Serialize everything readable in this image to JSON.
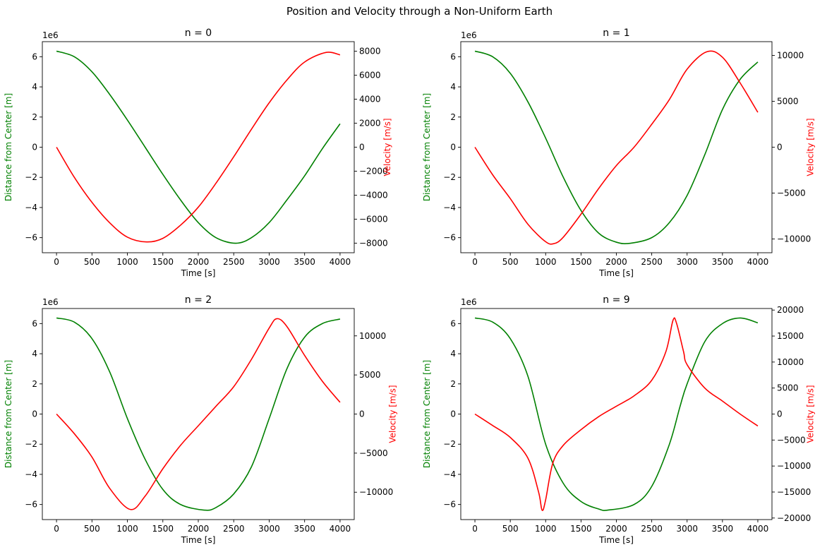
{
  "figure": {
    "suptitle": "Position and Velocity through a Non-Uniform Earth"
  },
  "colors": {
    "distance": "#008000",
    "velocity": "#ff0000",
    "axis": "#000000",
    "background": "#ffffff"
  },
  "chart_data": [
    {
      "type": "line",
      "title": "n = 0",
      "xlabel": "Time [s]",
      "ylabel_left": "Distance from Center [m]",
      "ylabel_right": "Velocity [m/s]",
      "left_offset_label": "1e6",
      "xlim": [
        -200,
        4200
      ],
      "xticks": [
        0,
        500,
        1000,
        1500,
        2000,
        2500,
        3000,
        3500,
        4000
      ],
      "ylim_left": [
        -7.0,
        7.0
      ],
      "yticks_left": [
        -6,
        -4,
        -2,
        0,
        2,
        4,
        6
      ],
      "ylim_right": [
        -8800,
        8800
      ],
      "yticks_right": [
        -8000,
        -6000,
        -4000,
        -2000,
        0,
        2000,
        4000,
        6000,
        8000
      ],
      "grid": false,
      "series": [
        {
          "name": "Distance from Center",
          "axis": "left",
          "x": [
            0,
            250,
            500,
            750,
            1000,
            1250,
            1500,
            1750,
            2000,
            2250,
            2530,
            2750,
            3000,
            3250,
            3500,
            3750,
            4000
          ],
          "y": [
            6.37,
            6.0,
            5.0,
            3.5,
            1.8,
            0.0,
            -1.8,
            -3.5,
            -5.0,
            -6.0,
            -6.37,
            -6.0,
            -5.0,
            -3.5,
            -1.9,
            -0.1,
            1.55
          ]
        },
        {
          "name": "Velocity",
          "axis": "right",
          "x": [
            0,
            250,
            500,
            750,
            1000,
            1270,
            1500,
            1750,
            2000,
            2250,
            2500,
            2750,
            3000,
            3250,
            3500,
            3800,
            4000
          ],
          "y": [
            0,
            -2500,
            -4600,
            -6300,
            -7500,
            -7900,
            -7600,
            -6500,
            -5000,
            -3000,
            -800,
            1500,
            3700,
            5600,
            7100,
            7900,
            7700
          ]
        }
      ]
    },
    {
      "type": "line",
      "title": "n = 1",
      "xlabel": "Time [s]",
      "ylabel_left": "Distance from Center [m]",
      "ylabel_right": "Velocity [m/s]",
      "left_offset_label": "1e6",
      "xlim": [
        -200,
        4200
      ],
      "xticks": [
        0,
        500,
        1000,
        1500,
        2000,
        2500,
        3000,
        3500,
        4000
      ],
      "ylim_left": [
        -7.0,
        7.0
      ],
      "yticks_left": [
        -6,
        -4,
        -2,
        0,
        2,
        4,
        6
      ],
      "ylim_right": [
        -11500,
        11500
      ],
      "yticks_right": [
        -10000,
        -5000,
        0,
        5000,
        10000
      ],
      "grid": false,
      "series": [
        {
          "name": "Distance from Center",
          "axis": "left",
          "x": [
            0,
            250,
            500,
            750,
            1000,
            1250,
            1500,
            1750,
            2000,
            2200,
            2500,
            2750,
            3000,
            3250,
            3500,
            3750,
            4000
          ],
          "y": [
            6.37,
            6.0,
            4.9,
            3.0,
            0.6,
            -2.0,
            -4.2,
            -5.7,
            -6.3,
            -6.37,
            -6.0,
            -5.0,
            -3.2,
            -0.5,
            2.5,
            4.5,
            5.65
          ]
        },
        {
          "name": "Velocity",
          "axis": "right",
          "x": [
            0,
            250,
            500,
            750,
            1000,
            1120,
            1250,
            1500,
            1750,
            2000,
            2250,
            2500,
            2750,
            3000,
            3280,
            3500,
            3750,
            4000
          ],
          "y": [
            0,
            -3000,
            -5600,
            -8400,
            -10300,
            -10500,
            -9800,
            -7300,
            -4500,
            -2000,
            0,
            2500,
            5200,
            8500,
            10400,
            9800,
            7000,
            3800
          ]
        }
      ]
    },
    {
      "type": "line",
      "title": "n = 2",
      "xlabel": "Time [s]",
      "ylabel_left": "Distance from Center [m]",
      "ylabel_right": "Velocity [m/s]",
      "left_offset_label": "1e6",
      "xlim": [
        -200,
        4200
      ],
      "xticks": [
        0,
        500,
        1000,
        1500,
        2000,
        2500,
        3000,
        3500,
        4000
      ],
      "ylim_left": [
        -7.0,
        7.0
      ],
      "yticks_left": [
        -6,
        -4,
        -2,
        0,
        2,
        4,
        6
      ],
      "ylim_right": [
        -13500,
        13500
      ],
      "yticks_right": [
        -10000,
        -5000,
        0,
        5000,
        10000
      ],
      "grid": false,
      "series": [
        {
          "name": "Distance from Center",
          "axis": "left",
          "x": [
            0,
            250,
            500,
            750,
            1000,
            1250,
            1500,
            1750,
            2080,
            2250,
            2500,
            2750,
            3000,
            3250,
            3500,
            3750,
            4000
          ],
          "y": [
            6.37,
            6.1,
            5.0,
            2.8,
            -0.3,
            -3.0,
            -5.0,
            -6.0,
            -6.37,
            -6.2,
            -5.3,
            -3.5,
            -0.3,
            3.0,
            5.1,
            6.0,
            6.3
          ]
        },
        {
          "name": "Velocity",
          "axis": "right",
          "x": [
            0,
            250,
            500,
            750,
            1040,
            1250,
            1500,
            1750,
            2000,
            2250,
            2500,
            2750,
            3000,
            3110,
            3250,
            3500,
            3750,
            4000
          ],
          "y": [
            0,
            -2500,
            -5500,
            -9500,
            -12200,
            -10500,
            -7000,
            -4000,
            -1500,
            1000,
            3500,
            7000,
            11000,
            12200,
            11200,
            7500,
            4200,
            1500
          ]
        }
      ]
    },
    {
      "type": "line",
      "title": "n = 9",
      "xlabel": "Time [s]",
      "ylabel_left": "Distance from Center [m]",
      "ylabel_right": "Velocity [m/s]",
      "left_offset_label": "1e6",
      "xlim": [
        -200,
        4200
      ],
      "xticks": [
        0,
        500,
        1000,
        1500,
        2000,
        2500,
        3000,
        3500,
        4000
      ],
      "ylim_left": [
        -7.0,
        7.0
      ],
      "yticks_left": [
        -6,
        -4,
        -2,
        0,
        2,
        4,
        6
      ],
      "ylim_right": [
        -20300,
        20300
      ],
      "yticks_right": [
        -20000,
        -15000,
        -10000,
        -5000,
        0,
        5000,
        10000,
        15000,
        20000
      ],
      "grid": false,
      "series": [
        {
          "name": "Distance from Center",
          "axis": "left",
          "x": [
            0,
            250,
            500,
            750,
            1000,
            1250,
            1500,
            1750,
            1880,
            2250,
            2500,
            2750,
            2900,
            3000,
            3250,
            3500,
            3750,
            4000
          ],
          "y": [
            6.37,
            6.1,
            5.0,
            2.5,
            -2.0,
            -4.6,
            -5.8,
            -6.3,
            -6.37,
            -6.0,
            -4.8,
            -2.0,
            0.5,
            2.0,
            4.8,
            6.0,
            6.37,
            6.05
          ]
        },
        {
          "name": "Velocity",
          "axis": "right",
          "x": [
            0,
            250,
            500,
            750,
            900,
            950,
            1000,
            1100,
            1250,
            1500,
            1750,
            2000,
            2250,
            2500,
            2700,
            2800,
            2850,
            2950,
            3000,
            3250,
            3500,
            3750,
            4000
          ],
          "y": [
            0,
            -2200,
            -4500,
            -8500,
            -15000,
            -18500,
            -16500,
            -9500,
            -6000,
            -3000,
            -500,
            1500,
            3500,
            6500,
            12000,
            18000,
            17500,
            12000,
            9500,
            5000,
            2500,
            0,
            -2300
          ]
        }
      ]
    }
  ]
}
